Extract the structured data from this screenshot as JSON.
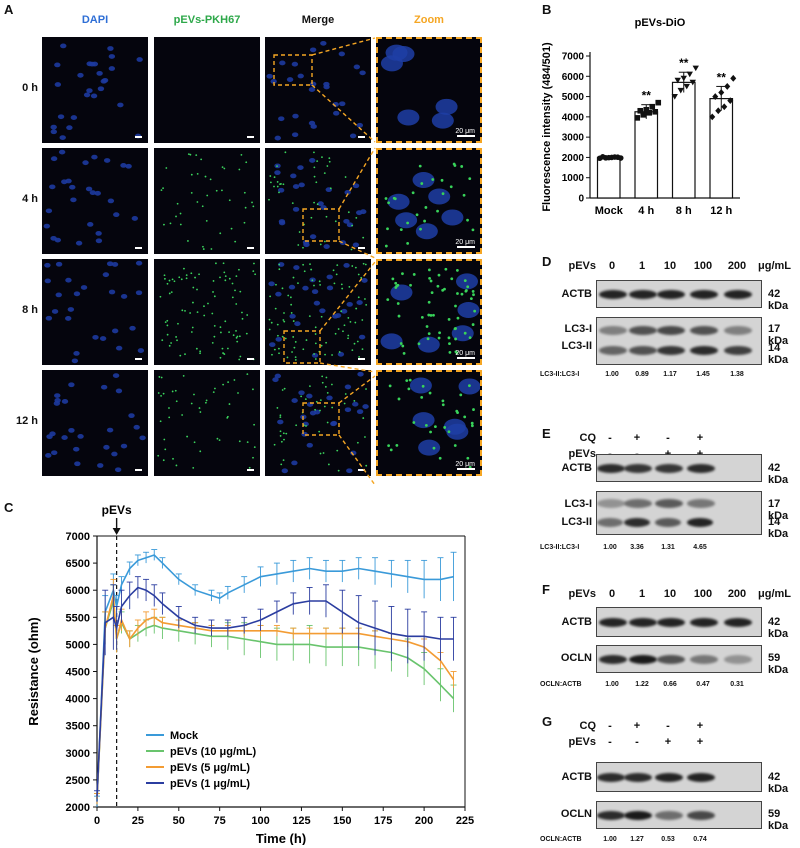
{
  "panels": {
    "A": "A",
    "B": "B",
    "C": "C",
    "D": "D",
    "E": "E",
    "F": "F",
    "G": "G"
  },
  "panel_a": {
    "columns": [
      "DAPI",
      "pEVs-PKH67",
      "Merge",
      "Zoom"
    ],
    "column_colors": [
      "#2f6fd6",
      "#2ea84a",
      "#111111",
      "#f5a623"
    ],
    "rows": [
      "0 h",
      "4 h",
      "8 h",
      "12 h"
    ],
    "scale": "20 μm"
  },
  "panel_d": {
    "treatment_label": "pEVs",
    "doses": [
      "0",
      "1",
      "10",
      "100",
      "200"
    ],
    "unit": "μg/mL",
    "proteins": [
      "ACTB",
      "LC3-I",
      "LC3-II"
    ],
    "kda": [
      "42 kDa",
      "17 kDa",
      "14 kDa"
    ],
    "ratio_label": "LC3-II:LC3-I",
    "ratios": [
      "1.00",
      "0.89",
      "1.17",
      "1.45",
      "1.38"
    ]
  },
  "panel_e": {
    "rows": [
      {
        "label": "CQ",
        "signs": [
          "-",
          "+",
          "-",
          "+"
        ]
      },
      {
        "label": "pEVs",
        "signs": [
          "-",
          "-",
          "+",
          "+"
        ]
      }
    ],
    "proteins": [
      "ACTB",
      "LC3-I",
      "LC3-II"
    ],
    "kda": [
      "42 kDa",
      "17 kDa",
      "14 kDa"
    ],
    "ratio_label": "LC3-II:LC3-I",
    "ratios": [
      "1.00",
      "3.36",
      "1.31",
      "4.65"
    ]
  },
  "panel_f": {
    "treatment_label": "pEVs",
    "doses": [
      "0",
      "1",
      "10",
      "100",
      "200"
    ],
    "unit": "μg/mL",
    "proteins": [
      "ACTB",
      "OCLN"
    ],
    "kda": [
      "42 kDa",
      "59 kDa"
    ],
    "ratio_label": "OCLN:ACTB",
    "ratios": [
      "1.00",
      "1.22",
      "0.66",
      "0.47",
      "0.31"
    ]
  },
  "panel_g": {
    "rows": [
      {
        "label": "CQ",
        "signs": [
          "-",
          "+",
          "-",
          "+"
        ]
      },
      {
        "label": "pEVs",
        "signs": [
          "-",
          "-",
          "+",
          "+"
        ]
      }
    ],
    "proteins": [
      "ACTB",
      "OCLN"
    ],
    "kda": [
      "42 kDa",
      "59 kDa"
    ],
    "ratio_label": "OCLN:ACTB",
    "ratios": [
      "1.00",
      "1.27",
      "0.53",
      "0.74"
    ]
  },
  "chart_data": [
    {
      "type": "bar",
      "title": "pEVs-DiO",
      "ylabel": "Fluorescence intensity (484/501)",
      "xlabel": "",
      "categories": [
        "Mock",
        "4 h",
        "8 h",
        "12 h"
      ],
      "values": [
        2000,
        4250,
        5700,
        4900
      ],
      "errors": [
        60,
        350,
        500,
        600
      ],
      "points": [
        [
          1960,
          1980,
          2000,
          2010,
          2030,
          1990,
          2020,
          1970
        ],
        [
          3950,
          4100,
          4200,
          4250,
          4300,
          4350,
          4500,
          4700
        ],
        [
          5000,
          5300,
          5500,
          5700,
          5800,
          5900,
          6100,
          6400
        ],
        [
          4000,
          4300,
          4500,
          4800,
          5000,
          5200,
          5500,
          5900
        ]
      ],
      "markers": [
        "circle",
        "square",
        "triangle-down",
        "diamond"
      ],
      "significance": [
        "",
        "**",
        "**",
        "**"
      ],
      "ylim": [
        0,
        7000
      ],
      "yticks": [
        0,
        1000,
        2000,
        3000,
        4000,
        5000,
        6000,
        7000
      ]
    },
    {
      "type": "line",
      "title": "",
      "ylabel": "Resistance (ohm)",
      "xlabel": "Time (h)",
      "annotation": "pEVs",
      "annotation_x": 12,
      "xlim": [
        0,
        225
      ],
      "ylim": [
        2000,
        7000
      ],
      "xticks": [
        0,
        25,
        50,
        75,
        100,
        125,
        150,
        175,
        200,
        225
      ],
      "yticks": [
        2000,
        2500,
        3000,
        3500,
        4000,
        4500,
        5000,
        5500,
        6000,
        6500,
        7000
      ],
      "series": [
        {
          "name": "Mock",
          "color": "#3a9ad9",
          "x": [
            0,
            5,
            10,
            12,
            15,
            20,
            25,
            30,
            35,
            40,
            50,
            60,
            70,
            75,
            80,
            90,
            100,
            110,
            120,
            130,
            140,
            150,
            160,
            170,
            180,
            190,
            200,
            210,
            218
          ],
          "y": [
            2100,
            5600,
            6000,
            5700,
            6100,
            6400,
            6550,
            6600,
            6650,
            6500,
            6200,
            6000,
            5900,
            5850,
            5950,
            6100,
            6250,
            6300,
            6350,
            6400,
            6350,
            6350,
            6400,
            6350,
            6300,
            6250,
            6200,
            6200,
            6250
          ],
          "err": [
            100,
            300,
            300,
            200,
            150,
            120,
            100,
            100,
            100,
            100,
            100,
            100,
            100,
            100,
            120,
            150,
            180,
            200,
            200,
            200,
            200,
            200,
            200,
            250,
            250,
            300,
            350,
            400,
            450
          ]
        },
        {
          "name": "pEVs (10 μg/mL)",
          "color": "#69c46d",
          "x": [
            0,
            5,
            10,
            12,
            15,
            20,
            25,
            30,
            35,
            40,
            50,
            60,
            70,
            80,
            90,
            100,
            110,
            120,
            130,
            140,
            150,
            160,
            170,
            180,
            190,
            200,
            210,
            218
          ],
          "y": [
            2150,
            5300,
            5800,
            5100,
            5400,
            5100,
            5200,
            5300,
            5350,
            5300,
            5250,
            5200,
            5150,
            5150,
            5100,
            5050,
            5000,
            5000,
            5000,
            4950,
            4950,
            4950,
            4900,
            4850,
            4750,
            4550,
            4250,
            4000
          ],
          "err": [
            100,
            300,
            300,
            250,
            200,
            150,
            150,
            150,
            150,
            200,
            200,
            200,
            200,
            250,
            300,
            300,
            300,
            300,
            350,
            350,
            350,
            350,
            350,
            350,
            350,
            300,
            300,
            250
          ]
        },
        {
          "name": "pEVs (5 μg/mL)",
          "color": "#f39c33",
          "x": [
            0,
            5,
            10,
            12,
            15,
            20,
            25,
            30,
            35,
            40,
            50,
            60,
            70,
            80,
            90,
            100,
            110,
            120,
            130,
            140,
            150,
            160,
            170,
            180,
            190,
            200,
            210,
            218
          ],
          "y": [
            2150,
            5300,
            5900,
            5100,
            5450,
            5100,
            5300,
            5450,
            5500,
            5400,
            5350,
            5300,
            5250,
            5250,
            5250,
            5250,
            5250,
            5200,
            5200,
            5200,
            5200,
            5200,
            5150,
            5100,
            5050,
            4950,
            4700,
            4350
          ],
          "err": [
            100,
            300,
            300,
            250,
            200,
            150,
            150,
            150,
            150,
            100,
            100,
            100,
            100,
            100,
            100,
            100,
            100,
            100,
            100,
            100,
            100,
            100,
            100,
            100,
            100,
            150,
            150,
            150
          ]
        },
        {
          "name": "pEVs (1 μg/mL)",
          "color": "#2b3da0",
          "x": [
            0,
            5,
            10,
            12,
            15,
            20,
            25,
            30,
            35,
            40,
            50,
            60,
            70,
            80,
            90,
            100,
            110,
            120,
            130,
            140,
            150,
            160,
            170,
            180,
            190,
            200,
            210,
            218
          ],
          "y": [
            2200,
            5400,
            5500,
            5300,
            5700,
            5900,
            6050,
            6000,
            5900,
            5750,
            5500,
            5350,
            5300,
            5300,
            5350,
            5450,
            5600,
            5750,
            5800,
            5800,
            5600,
            5400,
            5300,
            5200,
            5150,
            5150,
            5100,
            5100
          ],
          "err": [
            100,
            600,
            600,
            400,
            300,
            250,
            200,
            200,
            200,
            200,
            200,
            150,
            150,
            150,
            150,
            200,
            200,
            200,
            250,
            300,
            400,
            500,
            500,
            500,
            500,
            450,
            400,
            400
          ]
        }
      ]
    }
  ]
}
